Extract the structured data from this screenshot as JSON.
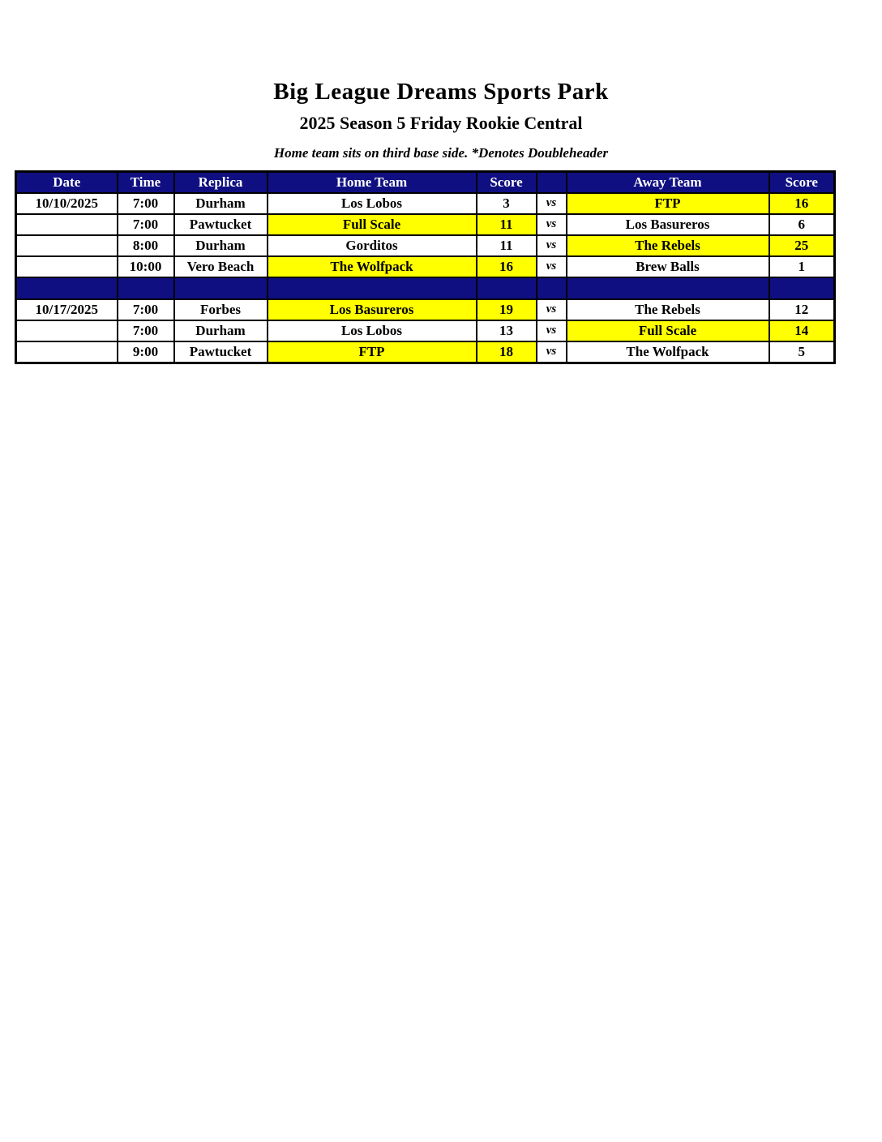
{
  "page": {
    "title": "Big League Dreams Sports Park",
    "subtitle": "2025 Season 5 Friday Rookie Central",
    "note": "Home team sits on third base side.  *Denotes Doubleheader"
  },
  "table": {
    "headers": [
      "Date",
      "Time",
      "Replica",
      "Home Team",
      "Score",
      "",
      "Away Team",
      "Score"
    ],
    "vs_label": "vs",
    "colors": {
      "header_bg": "#0f0f82",
      "header_text": "#ffffff",
      "highlight": "#ffff00",
      "border": "#000000"
    },
    "rows": [
      {
        "type": "game",
        "date": "10/10/2025",
        "time": "7:00",
        "replica": "Durham",
        "home": "Los Lobos",
        "home_score": "3",
        "home_hl": false,
        "away": "FTP",
        "away_score": "16",
        "away_hl": true
      },
      {
        "type": "game",
        "date": "",
        "time": "7:00",
        "replica": "Pawtucket",
        "home": "Full Scale",
        "home_score": "11",
        "home_hl": true,
        "away": "Los Basureros",
        "away_score": "6",
        "away_hl": false
      },
      {
        "type": "game",
        "date": "",
        "time": "8:00",
        "replica": "Durham",
        "home": "Gorditos",
        "home_score": "11",
        "home_hl": false,
        "away": "The Rebels",
        "away_score": "25",
        "away_hl": true
      },
      {
        "type": "game",
        "date": "",
        "time": "10:00",
        "replica": "Vero Beach",
        "home": "The Wolfpack",
        "home_score": "16",
        "home_hl": true,
        "away": "Brew Balls",
        "away_score": "1",
        "away_hl": false
      },
      {
        "type": "separator"
      },
      {
        "type": "game",
        "date": "10/17/2025",
        "time": "7:00",
        "replica": "Forbes",
        "home": "Los Basureros",
        "home_score": "19",
        "home_hl": true,
        "away": "The Rebels",
        "away_score": "12",
        "away_hl": false
      },
      {
        "type": "game",
        "date": "",
        "time": "7:00",
        "replica": "Durham",
        "home": "Los Lobos",
        "home_score": "13",
        "home_hl": false,
        "away": "Full Scale",
        "away_score": "14",
        "away_hl": true
      },
      {
        "type": "game",
        "date": "",
        "time": "9:00",
        "replica": "Pawtucket",
        "home": "FTP",
        "home_score": "18",
        "home_hl": true,
        "away": "The Wolfpack",
        "away_score": "5",
        "away_hl": false
      }
    ]
  }
}
